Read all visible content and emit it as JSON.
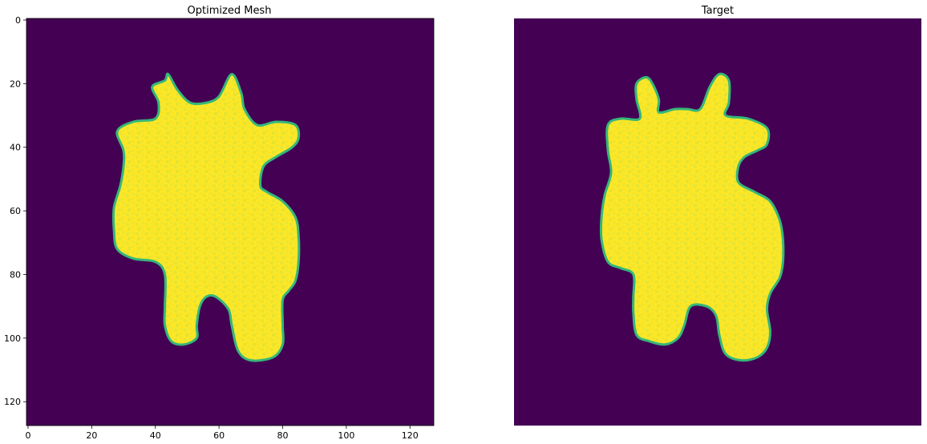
{
  "chart_data": [
    {
      "type": "heatmap",
      "title": "Optimized Mesh",
      "colormap": "viridis",
      "background_color": "#440154",
      "foreground_color": "#fde725",
      "edge_color": "#35b779",
      "image_size": [
        128,
        128
      ],
      "xlim": [
        0,
        127
      ],
      "ylim": [
        127,
        0
      ],
      "axes_visible": true,
      "xticks": [
        "0",
        "20",
        "40",
        "60",
        "80",
        "100",
        "120"
      ],
      "yticks": [
        "0",
        "20",
        "40",
        "60",
        "80",
        "100",
        "120"
      ],
      "silhouette": [
        [
          44,
          17
        ],
        [
          47,
          22
        ],
        [
          51,
          26
        ],
        [
          56,
          26
        ],
        [
          60,
          24
        ],
        [
          64,
          17
        ],
        [
          67,
          23
        ],
        [
          68,
          28
        ],
        [
          72,
          33
        ],
        [
          78,
          32
        ],
        [
          84,
          33
        ],
        [
          85,
          37
        ],
        [
          83,
          40
        ],
        [
          78,
          43
        ],
        [
          74,
          46
        ],
        [
          73,
          52
        ],
        [
          75,
          54
        ],
        [
          80,
          57
        ],
        [
          84,
          62
        ],
        [
          85,
          68
        ],
        [
          85,
          76
        ],
        [
          84,
          82
        ],
        [
          82,
          85
        ],
        [
          80,
          88
        ],
        [
          80,
          96
        ],
        [
          80,
          102
        ],
        [
          77,
          106
        ],
        [
          70,
          107
        ],
        [
          66,
          104
        ],
        [
          64,
          96
        ],
        [
          63,
          91
        ],
        [
          59,
          87
        ],
        [
          56,
          87
        ],
        [
          54,
          90
        ],
        [
          53,
          96
        ],
        [
          53,
          100
        ],
        [
          49,
          102
        ],
        [
          45,
          101
        ],
        [
          43,
          96
        ],
        [
          43,
          90
        ],
        [
          43,
          80
        ],
        [
          40,
          76
        ],
        [
          33,
          75
        ],
        [
          28,
          72
        ],
        [
          27,
          66
        ],
        [
          27,
          59
        ],
        [
          29,
          52
        ],
        [
          30,
          46
        ],
        [
          30,
          41
        ],
        [
          28,
          35
        ],
        [
          33,
          32
        ],
        [
          40,
          31
        ],
        [
          41,
          26
        ],
        [
          39,
          21
        ],
        [
          43,
          19
        ]
      ]
    },
    {
      "type": "heatmap",
      "title": "Target",
      "colormap": "viridis",
      "background_color": "#440154",
      "foreground_color": "#fde725",
      "edge_color": "#35b779",
      "image_size": [
        128,
        128
      ],
      "axes_visible": false,
      "silhouette": [
        [
          41,
          18
        ],
        [
          43,
          20
        ],
        [
          45,
          25
        ],
        [
          45,
          29
        ],
        [
          50,
          28
        ],
        [
          54,
          28
        ],
        [
          58,
          28
        ],
        [
          61,
          21
        ],
        [
          64,
          17
        ],
        [
          67,
          19
        ],
        [
          67,
          26
        ],
        [
          66,
          30
        ],
        [
          73,
          31
        ],
        [
          79,
          34
        ],
        [
          79,
          39
        ],
        [
          76,
          41
        ],
        [
          72,
          43
        ],
        [
          70,
          46
        ],
        [
          70,
          51
        ],
        [
          75,
          54
        ],
        [
          80,
          57
        ],
        [
          83,
          63
        ],
        [
          84,
          69
        ],
        [
          84,
          76
        ],
        [
          83,
          81
        ],
        [
          80,
          86
        ],
        [
          79,
          91
        ],
        [
          80,
          98
        ],
        [
          79,
          103
        ],
        [
          76,
          106
        ],
        [
          71,
          107
        ],
        [
          66,
          105
        ],
        [
          64,
          99
        ],
        [
          63,
          93
        ],
        [
          60,
          90
        ],
        [
          55,
          90
        ],
        [
          53,
          96
        ],
        [
          51,
          100
        ],
        [
          47,
          102
        ],
        [
          42,
          101
        ],
        [
          38,
          99
        ],
        [
          37,
          92
        ],
        [
          37,
          87
        ],
        [
          37,
          80
        ],
        [
          33,
          78
        ],
        [
          29,
          76
        ],
        [
          27,
          69
        ],
        [
          27,
          62
        ],
        [
          28,
          55
        ],
        [
          30,
          48
        ],
        [
          29,
          41
        ],
        [
          29,
          33
        ],
        [
          33,
          31
        ],
        [
          39,
          31
        ],
        [
          38,
          25
        ],
        [
          38,
          20
        ]
      ]
    }
  ]
}
